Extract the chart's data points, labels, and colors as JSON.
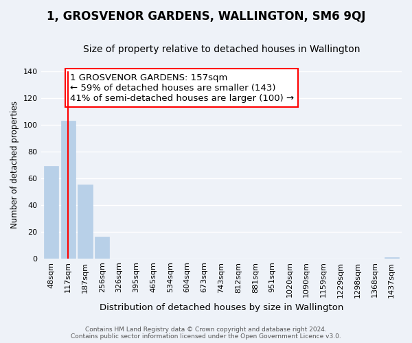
{
  "title": "1, GROSVENOR GARDENS, WALLINGTON, SM6 9QJ",
  "subtitle": "Size of property relative to detached houses in Wallington",
  "xlabel": "Distribution of detached houses by size in Wallington",
  "ylabel": "Number of detached properties",
  "bar_labels": [
    "48sqm",
    "117sqm",
    "187sqm",
    "256sqm",
    "326sqm",
    "395sqm",
    "465sqm",
    "534sqm",
    "604sqm",
    "673sqm",
    "743sqm",
    "812sqm",
    "881sqm",
    "951sqm",
    "1020sqm",
    "1090sqm",
    "1159sqm",
    "1229sqm",
    "1298sqm",
    "1368sqm",
    "1437sqm"
  ],
  "bar_values": [
    69,
    103,
    55,
    16,
    0,
    0,
    0,
    0,
    0,
    0,
    0,
    0,
    0,
    0,
    0,
    0,
    0,
    0,
    0,
    0,
    1
  ],
  "bar_color": "#b8d0e8",
  "bar_edge_color": "#b8d0e8",
  "annotation_box_text": "1 GROSVENOR GARDENS: 157sqm\n← 59% of detached houses are smaller (143)\n41% of semi-detached houses are larger (100) →",
  "red_line_x": 1,
  "ylim": [
    0,
    140
  ],
  "yticks": [
    0,
    20,
    40,
    60,
    80,
    100,
    120,
    140
  ],
  "footer_line1": "Contains HM Land Registry data © Crown copyright and database right 2024.",
  "footer_line2": "Contains public sector information licensed under the Open Government Licence v3.0.",
  "bg_color": "#eef2f8",
  "grid_color": "#ffffff",
  "annotation_fontsize": 9.5,
  "title_fontsize": 12,
  "subtitle_fontsize": 10
}
